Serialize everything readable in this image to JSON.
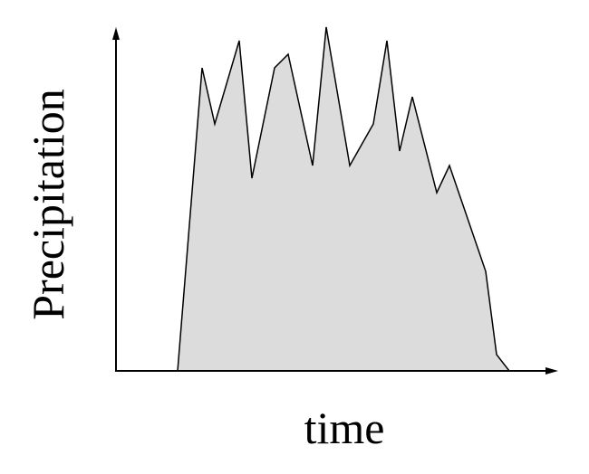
{
  "chart_data": {
    "type": "area",
    "xlabel": "time",
    "ylabel": "Precipitation",
    "x": [
      68,
      95,
      109,
      136,
      150,
      175,
      190,
      217,
      232,
      258,
      284,
      299,
      313,
      327,
      354,
      368,
      408,
      420,
      434
    ],
    "values": [
      0,
      335,
      273,
      365,
      213,
      335,
      350,
      227,
      380,
      227,
      273,
      365,
      243,
      303,
      197,
      227,
      110,
      18,
      0
    ],
    "color": "#dcdcdc",
    "xlim": [
      0,
      480
    ],
    "ylim": [
      0,
      380
    ]
  }
}
